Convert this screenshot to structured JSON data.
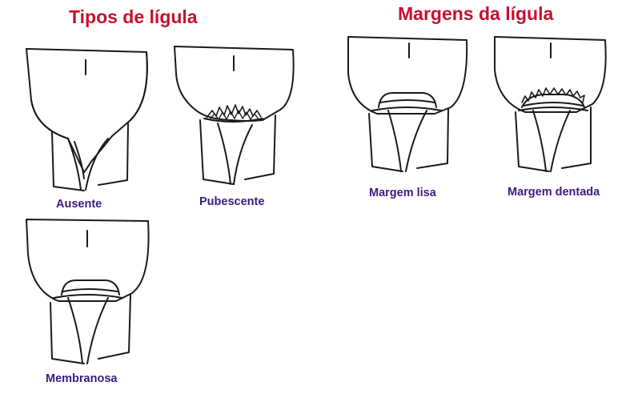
{
  "sections": {
    "types": {
      "title": "Tipos de lígula",
      "items": [
        {
          "caption": "Ausente"
        },
        {
          "caption": "Pubescente"
        },
        {
          "caption": "Membranosa"
        }
      ]
    },
    "margins": {
      "title": "Margens da lígula",
      "items": [
        {
          "caption": "Margem lisa"
        },
        {
          "caption": "Margem dentada"
        }
      ]
    }
  },
  "colors": {
    "title": "#c8102e",
    "caption": "#3b1c80",
    "line": "#1a1a1a"
  }
}
